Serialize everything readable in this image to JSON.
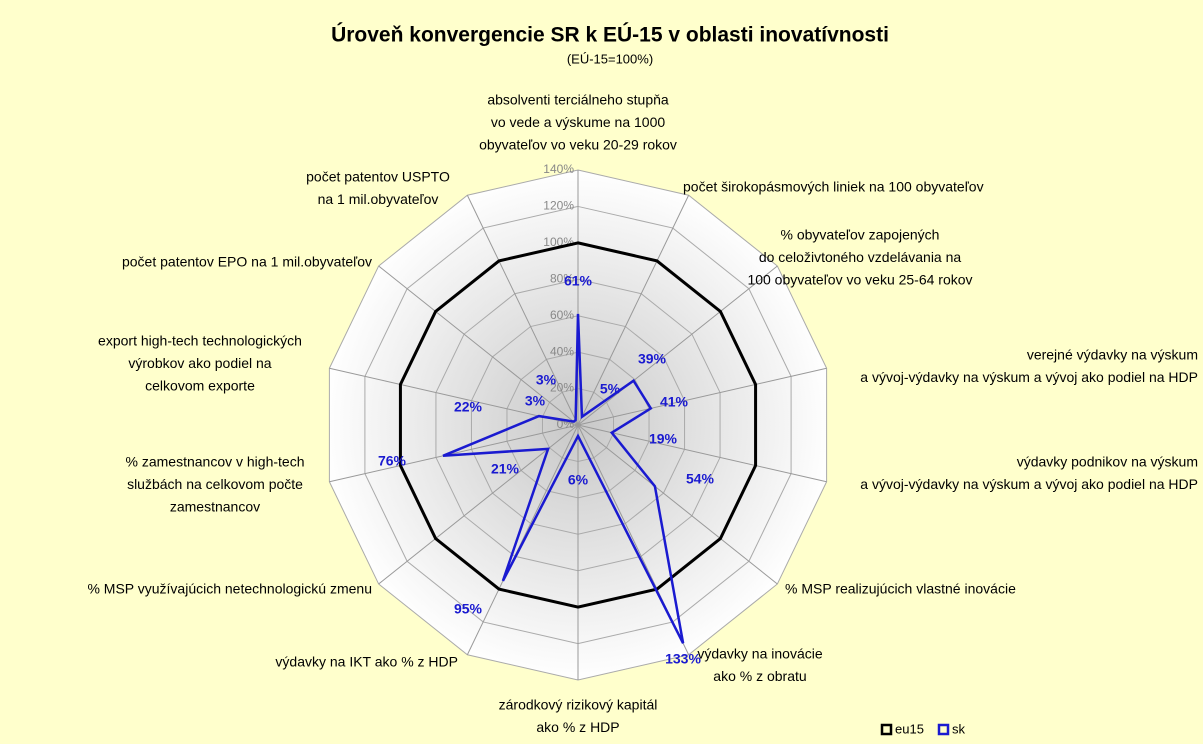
{
  "chart_data": {
    "type": "radar",
    "title": "Úroveň konvergencie SR k EÚ-15 v oblasti inovatívnosti",
    "subtitle": "(EÚ-15=100%)",
    "categories": [
      [
        "absolventi terciálneho stupňa",
        "vo vede a výskume na 1000",
        "obyvateľov vo veku 20-29 rokov"
      ],
      [
        "počet širokopásmových liniek na 100 obyvateľov"
      ],
      [
        "% obyvateľov zapojených",
        "do celoživtoného vzdelávania na",
        "100 obyvateľov vo veku 25-64 rokov"
      ],
      [
        "verejné výdavky na výskum",
        "a vývoj-výdavky na výskum a vývoj ako podiel na HDP"
      ],
      [
        "výdavky podnikov na výskum",
        "a vývoj-výdavky na výskum a vývoj ako podiel na HDP"
      ],
      [
        "% MSP realizujúcich vlastné inovácie"
      ],
      [
        "výdavky na inovácie",
        "ako % z obratu"
      ],
      [
        "zárodkový rizikový kapitál",
        "ako % z HDP"
      ],
      [
        "výdavky na IKT ako % z HDP"
      ],
      [
        "% MSP využívajúcich netechnologickú zmenu"
      ],
      [
        "% zamestnancov v high-tech",
        "službách na celkovom počte",
        "zamestnancov"
      ],
      [
        "export high-tech technologických",
        "výrobkov ako podiel na",
        "celkovom exporte"
      ],
      [
        "počet patentov EPO na 1 mil.obyvateľov"
      ],
      [
        "počet patentov USPTO",
        "na 1 mil.obyvateľov"
      ]
    ],
    "series": [
      {
        "name": "eu15",
        "color": "#000000",
        "values": [
          100,
          100,
          100,
          100,
          100,
          100,
          100,
          100,
          100,
          100,
          100,
          100,
          100,
          100
        ]
      },
      {
        "name": "sk",
        "color": "#1a1ad0",
        "values": [
          61,
          5,
          39,
          41,
          19,
          54,
          133,
          6,
          95,
          21,
          76,
          22,
          3,
          3
        ],
        "value_labels": [
          "61%",
          "5%",
          "39%",
          "41%",
          "19%",
          "54%",
          "133%",
          "6%",
          "95%",
          "21%",
          "76%",
          "22%",
          "3%",
          "3%"
        ]
      }
    ],
    "ylim": [
      0,
      140
    ],
    "yticks": [
      {
        "value": 0,
        "label": "0%"
      },
      {
        "value": 20,
        "label": "20%"
      },
      {
        "value": 40,
        "label": "40%"
      },
      {
        "value": 60,
        "label": "60%"
      },
      {
        "value": 80,
        "label": "80%"
      },
      {
        "value": 100,
        "label": "100%"
      },
      {
        "value": 120,
        "label": "120%"
      },
      {
        "value": 140,
        "label": "140%"
      }
    ],
    "legend": "bottom-right"
  }
}
